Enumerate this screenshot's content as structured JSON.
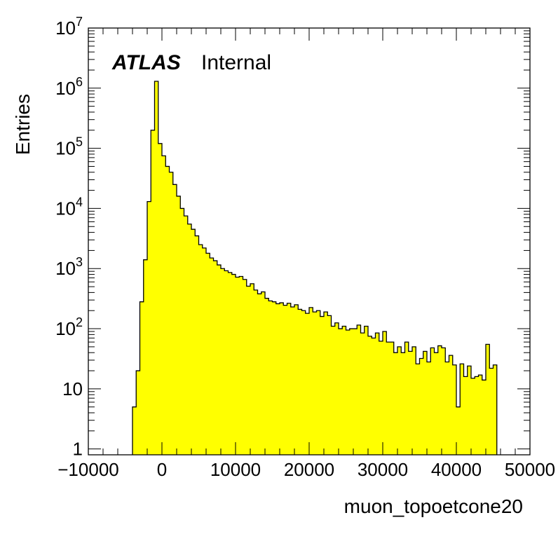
{
  "chart_data": {
    "type": "histogram",
    "title": "",
    "xlabel": "muon_topoetcone20",
    "ylabel": "Entries",
    "label_bold": "ATLAS",
    "label_text": "Internal",
    "xlim": [
      -10000,
      50000
    ],
    "ylim": [
      0.8,
      10000000
    ],
    "y_scale": "log",
    "x_ticks": [
      "−10000",
      "0",
      "10000",
      "20000",
      "30000",
      "40000",
      "50000"
    ],
    "x_tick_values": [
      -10000,
      0,
      10000,
      20000,
      30000,
      40000,
      50000
    ],
    "y_ticks": [
      {
        "value": 1,
        "base": "1",
        "exp": ""
      },
      {
        "value": 10,
        "base": "10",
        "exp": ""
      },
      {
        "value": 100,
        "base": "10",
        "exp": "2"
      },
      {
        "value": 1000,
        "base": "10",
        "exp": "3"
      },
      {
        "value": 10000,
        "base": "10",
        "exp": "4"
      },
      {
        "value": 100000,
        "base": "10",
        "exp": "5"
      },
      {
        "value": 1000000,
        "base": "10",
        "exp": "6"
      },
      {
        "value": 10000000,
        "base": "10",
        "exp": "7"
      }
    ],
    "fill_color": "#ffff00",
    "line_color": "#000000",
    "bin_start": -4000,
    "bin_width": 500,
    "values": [
      5,
      20,
      280,
      1400,
      13000,
      200000,
      1300000,
      120000,
      75000,
      50000,
      40000,
      25000,
      16000,
      10000,
      7500,
      5500,
      4500,
      3500,
      2500,
      2200,
      1800,
      1500,
      1350,
      1150,
      1000,
      920,
      860,
      800,
      720,
      740,
      660,
      510,
      560,
      440,
      380,
      410,
      320,
      290,
      280,
      260,
      270,
      245,
      265,
      230,
      250,
      210,
      200,
      180,
      225,
      190,
      200,
      160,
      190,
      165,
      110,
      125,
      100,
      110,
      95,
      100,
      100,
      115,
      85,
      110,
      75,
      70,
      85,
      62,
      90,
      60,
      60,
      40,
      50,
      40,
      60,
      42,
      50,
      26,
      32,
      42,
      28,
      48,
      40,
      52,
      48,
      28,
      36,
      25,
      5,
      26,
      16,
      24,
      15,
      16,
      17,
      14,
      55,
      22,
      25
    ]
  }
}
